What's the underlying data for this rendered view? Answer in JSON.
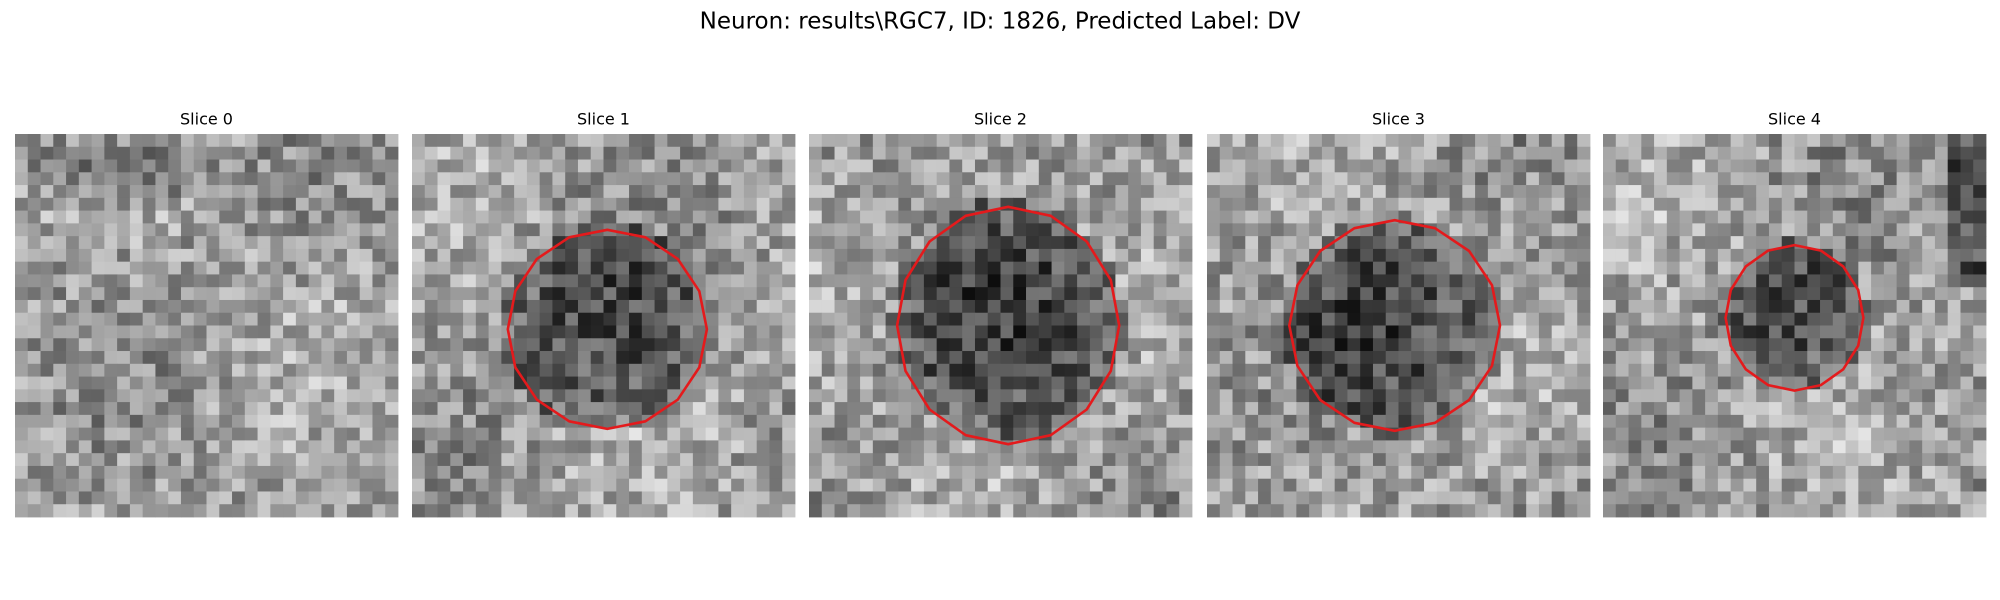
{
  "header": {
    "title": "Neuron: results\\RGC7, ID: 1826, Predicted Label: DV"
  },
  "panels": [
    {
      "title": "Slice 0"
    },
    {
      "title": "Slice 1"
    },
    {
      "title": "Slice 2"
    },
    {
      "title": "Slice 3"
    },
    {
      "title": "Slice 4"
    }
  ]
}
